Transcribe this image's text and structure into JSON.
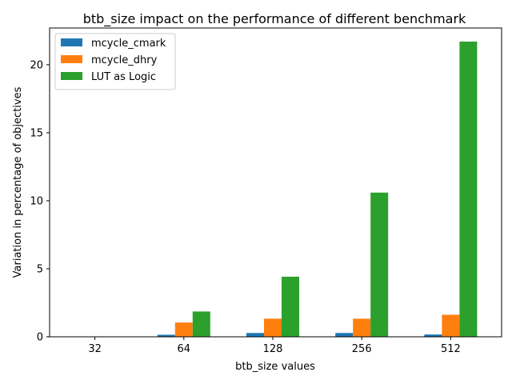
{
  "chart_data": {
    "type": "bar",
    "title": "btb_size impact on the performance of different benchmark",
    "xlabel": "btb_size values",
    "ylabel": "Variation in percentage of objectives",
    "categories": [
      "32",
      "64",
      "128",
      "256",
      "512"
    ],
    "ylim": [
      0,
      22.7
    ],
    "yticks": [
      0,
      5,
      10,
      15,
      20
    ],
    "grid": false,
    "legend_position": "upper-left",
    "series": [
      {
        "name": "mcycle_cmark",
        "color": "#1f77b4",
        "values": [
          0,
          0.15,
          0.28,
          0.28,
          0.17
        ]
      },
      {
        "name": "mcycle_dhry",
        "color": "#ff7f0e",
        "values": [
          0,
          1.05,
          1.33,
          1.33,
          1.62
        ]
      },
      {
        "name": "LUT as Logic",
        "color": "#2ca02c",
        "values": [
          0,
          1.86,
          4.42,
          10.6,
          21.7
        ]
      }
    ]
  }
}
